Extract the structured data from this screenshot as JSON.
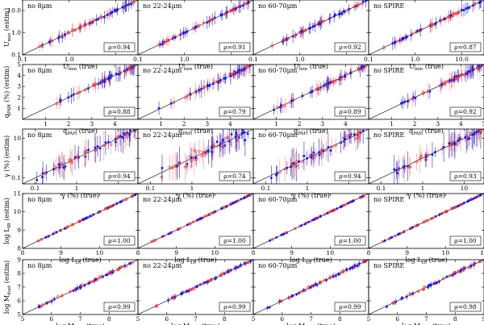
{
  "columns": [
    "no 8μm",
    "no 22-24μm",
    "no 60-70μm",
    "no SPIRE"
  ],
  "colors": {
    "red": "#e8242a",
    "blue": "#1f1fd8",
    "red_err": "#f07b78",
    "blue_err": "#2a2ad8"
  },
  "chart_data": [
    {
      "type": "scatter",
      "row": 0,
      "xscale": "log",
      "yscale": "log",
      "xlim": [
        0.1,
        30
      ],
      "ylim": [
        0.1,
        30
      ],
      "xticks": [
        0.1,
        1,
        10
      ],
      "xticklabels": [
        "0.1",
        "1.0",
        "10.0"
      ],
      "yticks": [
        0.1,
        1,
        10
      ],
      "yticklabels": [
        "0.1",
        "1.0",
        "10.0"
      ],
      "xlabel": {
        "main": "U",
        "sub": "min",
        "suffix": " (true)"
      },
      "ylabel": {
        "main": "U",
        "sub": "min",
        "suffix": " (estim)"
      },
      "rho": [
        "ρ=0.94",
        "ρ=0.91",
        "ρ=0.92",
        "ρ=0.87"
      ]
    },
    {
      "type": "scatter",
      "row": 1,
      "xscale": "linear",
      "yscale": "linear",
      "xlim": [
        0,
        5
      ],
      "ylim": [
        0,
        5
      ],
      "xticks": [
        1,
        2,
        3,
        4,
        5
      ],
      "xticklabels": [
        "1",
        "2",
        "3",
        "4",
        "5"
      ],
      "yticks": [
        1,
        2,
        3,
        4,
        5
      ],
      "yticklabels": [
        "1",
        "2",
        "3",
        "4",
        "5"
      ],
      "xlabel": {
        "main": "q",
        "sub": "PAH",
        "suffix": " (true)"
      },
      "ylabel": {
        "main": "q",
        "sub": "PAH",
        "suffix": " (%) (estim)"
      },
      "rho": [
        "ρ=0.88",
        "ρ=0.79",
        "ρ=0.89",
        "ρ=0.92"
      ]
    },
    {
      "type": "scatter",
      "row": 2,
      "xscale": "log",
      "yscale": "log",
      "xlim": [
        0.05,
        30
      ],
      "ylim": [
        0.05,
        30
      ],
      "xticks": [
        0.1,
        1,
        10
      ],
      "xticklabels": [
        "0.1",
        "1",
        "10"
      ],
      "yticks": [
        0.1,
        1,
        10
      ],
      "yticklabels": [
        "0.1",
        "1",
        "10"
      ],
      "xlabel": {
        "main": "γ (%) (true)",
        "sub": "",
        "suffix": ""
      },
      "ylabel": {
        "main": "γ (%) (estim)",
        "sub": "",
        "suffix": ""
      },
      "rho": [
        "ρ=0.94",
        "ρ=0.74",
        "ρ=0.94",
        "ρ=0.93"
      ]
    },
    {
      "type": "scatter",
      "row": 3,
      "xscale": "linear",
      "yscale": "linear",
      "xlim": [
        8,
        11
      ],
      "ylim": [
        8,
        11
      ],
      "xticks": [
        8,
        9,
        10,
        11
      ],
      "xticklabels": [
        "8",
        "9",
        "10",
        "11"
      ],
      "yticks": [
        8,
        9,
        10,
        11
      ],
      "yticklabels": [
        "8",
        "9",
        "10",
        "11"
      ],
      "xlabel": {
        "main": "log L",
        "sub": "IR",
        "suffix": " (true)"
      },
      "ylabel": {
        "main": "log L",
        "sub": "IR",
        "suffix": " (estim)"
      },
      "rho": [
        "ρ=1.00",
        "ρ=1.00",
        "ρ=1.00",
        "ρ=1.00"
      ]
    },
    {
      "type": "scatter",
      "row": 4,
      "xscale": "linear",
      "yscale": "linear",
      "xlim": [
        5,
        9
      ],
      "ylim": [
        5,
        9
      ],
      "xticks": [
        5,
        6,
        7,
        8,
        9
      ],
      "xticklabels": [
        "5",
        "6",
        "7",
        "8",
        "9"
      ],
      "yticks": [
        5,
        6,
        7,
        8,
        9
      ],
      "yticklabels": [
        "5",
        "6",
        "7",
        "8",
        "9"
      ],
      "xlabel": {
        "main": "log M",
        "sub": "dust",
        "suffix": " (true)"
      },
      "ylabel": {
        "main": "log M",
        "sub": "dust",
        "suffix": " (estim)"
      },
      "rho": [
        "ρ=0.99",
        "ρ=0.99",
        "ρ=0.99",
        "ρ=0.98"
      ]
    }
  ]
}
